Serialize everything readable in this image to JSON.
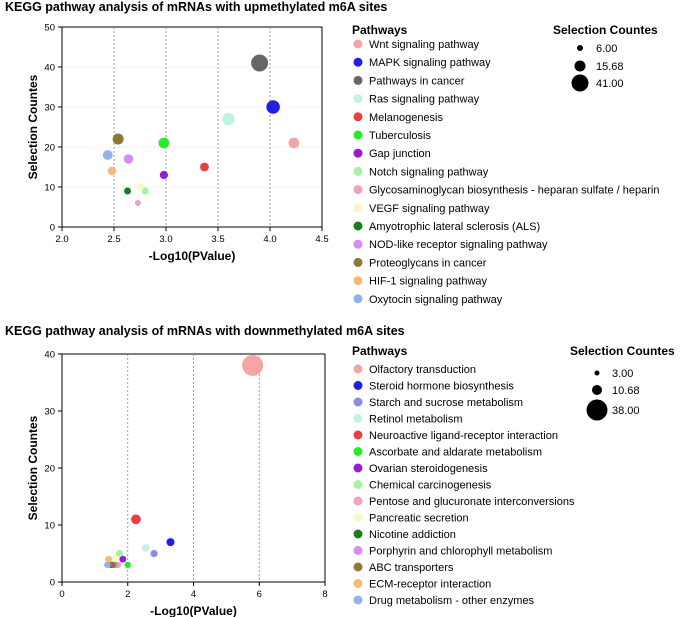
{
  "chart_data": [
    {
      "type": "scatter",
      "title": "KEGG pathway analysis of mRNAs with upmethylated m6A sites",
      "xlabel": "-Log10(PValue)",
      "ylabel": "Selection Countes",
      "xlim": [
        2.0,
        4.5
      ],
      "ylim": [
        0,
        50
      ],
      "xticks": [
        "2.0",
        "2.5",
        "3.0",
        "3.5",
        "4.0",
        "4.5"
      ],
      "yticks": [
        "0",
        "10",
        "20",
        "30",
        "40",
        "50"
      ],
      "legend_title": "Pathways",
      "size_legend_title": "Selection Countes",
      "size_legend": [
        {
          "label": "6.00",
          "value": 6
        },
        {
          "label": "15.68",
          "value": 15.68
        },
        {
          "label": "41.00",
          "value": 41
        }
      ],
      "series": [
        {
          "name": "Wnt signaling pathway",
          "color": "#f4a6a6",
          "x": 4.23,
          "y": 21
        },
        {
          "name": "MAPK signaling pathway",
          "color": "#1f1fe6",
          "x": 4.03,
          "y": 30
        },
        {
          "name": "Pathways in cancer",
          "color": "#666666",
          "x": 3.9,
          "y": 41
        },
        {
          "name": "Ras signaling pathway",
          "color": "#bff2e2",
          "x": 3.6,
          "y": 27
        },
        {
          "name": "Melanogenesis",
          "color": "#e84040",
          "x": 3.37,
          "y": 15
        },
        {
          "name": "Tuberculosis",
          "color": "#22ee22",
          "x": 2.98,
          "y": 21
        },
        {
          "name": "Gap junction",
          "color": "#9a1ad1",
          "x": 2.98,
          "y": 13
        },
        {
          "name": "Notch signaling pathway",
          "color": "#a5f2a5",
          "x": 2.8,
          "y": 9
        },
        {
          "name": "Glycosaminoglycan biosynthesis - heparan sulfate / heparin",
          "color": "#f2a0c0",
          "x": 2.73,
          "y": 6
        },
        {
          "name": "VEGF signaling pathway",
          "color": "#f7f7c8",
          "x": 2.75,
          "y": 10
        },
        {
          "name": "Amyotrophic lateral sclerosis (ALS)",
          "color": "#1d7a1d",
          "x": 2.63,
          "y": 9
        },
        {
          "name": "NOD-like receptor signaling pathway",
          "color": "#d68af2",
          "x": 2.64,
          "y": 17
        },
        {
          "name": "Proteoglycans in cancer",
          "color": "#8c7a34",
          "x": 2.54,
          "y": 22
        },
        {
          "name": "HIF-1 signaling pathway",
          "color": "#f7b97a",
          "x": 2.48,
          "y": 14
        },
        {
          "name": "Oxytocin signaling pathway",
          "color": "#8fb3ea",
          "x": 2.44,
          "y": 18
        }
      ]
    },
    {
      "type": "scatter",
      "title": "KEGG pathway analysis of mRNAs with downmethylated m6A sites",
      "xlabel": "-Log10(PValue)",
      "ylabel": "Selection Countes",
      "xlim": [
        0,
        8
      ],
      "ylim": [
        0,
        40
      ],
      "xticks": [
        "0",
        "2",
        "4",
        "6",
        "8"
      ],
      "yticks": [
        "0",
        "10",
        "20",
        "30",
        "40"
      ],
      "legend_title": "Pathways",
      "size_legend_title": "Selection Countes",
      "size_legend": [
        {
          "label": "3.00",
          "value": 3
        },
        {
          "label": "10.68",
          "value": 10.68
        },
        {
          "label": "38.00",
          "value": 38
        }
      ],
      "series": [
        {
          "name": "Olfactory transduction",
          "color": "#f4a6a6",
          "x": 5.8,
          "y": 38
        },
        {
          "name": "Steroid hormone biosynthesis",
          "color": "#1f1fe6",
          "x": 3.3,
          "y": 7
        },
        {
          "name": "Starch and sucrose metabolism",
          "color": "#8a8ae8",
          "x": 2.8,
          "y": 5
        },
        {
          "name": "Retinol metabolism",
          "color": "#bff2e2",
          "x": 2.55,
          "y": 6
        },
        {
          "name": "Neuroactive ligand-receptor interaction",
          "color": "#e84040",
          "x": 2.25,
          "y": 11
        },
        {
          "name": "Ascorbate and aldarate metabolism",
          "color": "#22ee22",
          "x": 2.0,
          "y": 3
        },
        {
          "name": "Ovarian steroidogenesis",
          "color": "#9a1ad1",
          "x": 1.85,
          "y": 4
        },
        {
          "name": "Chemical carcinogenesis",
          "color": "#a5f2a5",
          "x": 1.75,
          "y": 5
        },
        {
          "name": "Pentose and glucuronate interconversions",
          "color": "#f2a0c0",
          "x": 1.7,
          "y": 3
        },
        {
          "name": "Pancreatic secretion",
          "color": "#f7f7c8",
          "x": 1.6,
          "y": 4
        },
        {
          "name": "Nicotine addiction",
          "color": "#1d7a1d",
          "x": 1.5,
          "y": 3
        },
        {
          "name": "Porphyrin and chlorophyll metabolism",
          "color": "#d68af2",
          "x": 1.62,
          "y": 3
        },
        {
          "name": "ABC transporters",
          "color": "#8c7a34",
          "x": 1.55,
          "y": 3
        },
        {
          "name": "ECM-receptor interaction",
          "color": "#f7b97a",
          "x": 1.42,
          "y": 4
        },
        {
          "name": "Drug metabolism - other enzymes",
          "color": "#8fb3ea",
          "x": 1.38,
          "y": 3
        }
      ]
    }
  ]
}
